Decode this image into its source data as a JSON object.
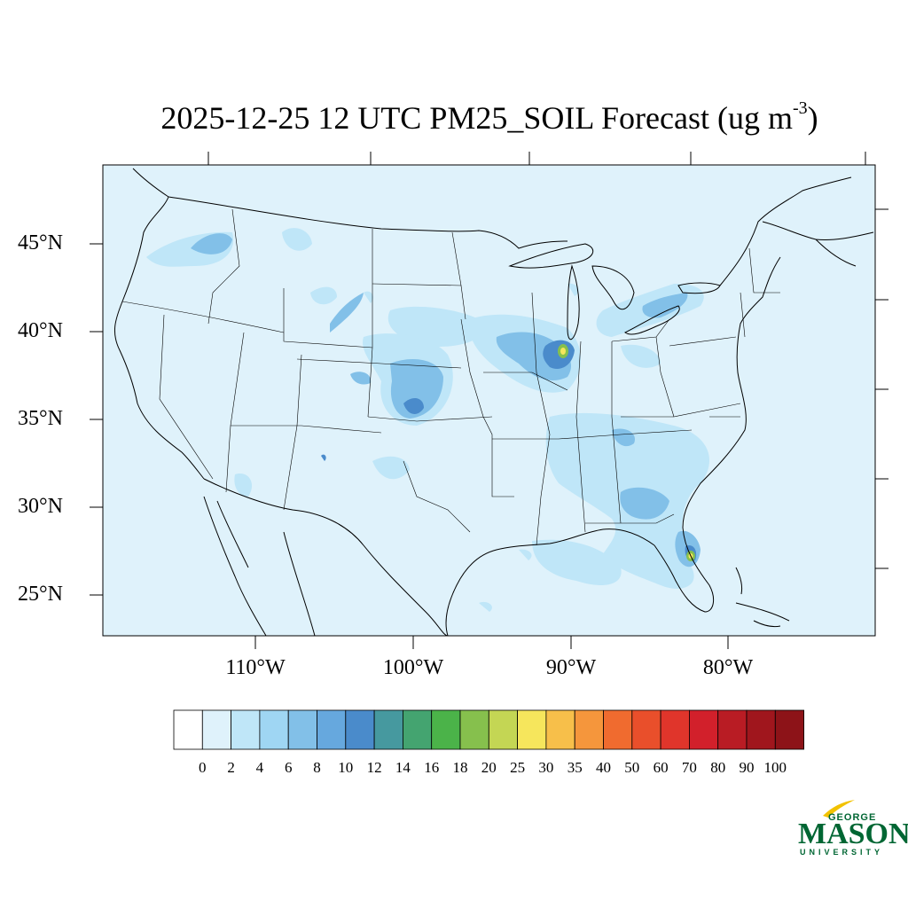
{
  "title": {
    "main": "2025-12-25 12 UTC PM25_SOIL Forecast (ug m",
    "exponent": "-3",
    "close": ")"
  },
  "latitude_labels": [
    "45°N",
    "40°N",
    "35°N",
    "30°N",
    "25°N"
  ],
  "longitude_labels": [
    "110°W",
    "100°W",
    "90°W",
    "80°W"
  ],
  "colorbar": {
    "labels": [
      "0",
      "2",
      "4",
      "6",
      "8",
      "10",
      "12",
      "14",
      "16",
      "18",
      "20",
      "25",
      "30",
      "35",
      "40",
      "50",
      "60",
      "70",
      "80",
      "90",
      "100"
    ],
    "colors": [
      "#ffffff",
      "#dff2fb",
      "#bfe6f8",
      "#9fd6f3",
      "#82c0e8",
      "#66a8de",
      "#4a8bcb",
      "#46999f",
      "#44a470",
      "#4bb349",
      "#86c04d",
      "#c4d654",
      "#f6e65c",
      "#f7bf4a",
      "#f5963c",
      "#f06b2f",
      "#e94f2b",
      "#e0352b",
      "#d2202b",
      "#b91c24",
      "#a0161d",
      "#8d1318"
    ]
  },
  "logo": {
    "line1": "GEORGE",
    "line2": "MASON",
    "line3": "UNIVERSITY",
    "color": "#006633",
    "accent": "#f2c200"
  },
  "colors": {
    "background_field": "#dff2fb",
    "boundary": "#000000"
  }
}
